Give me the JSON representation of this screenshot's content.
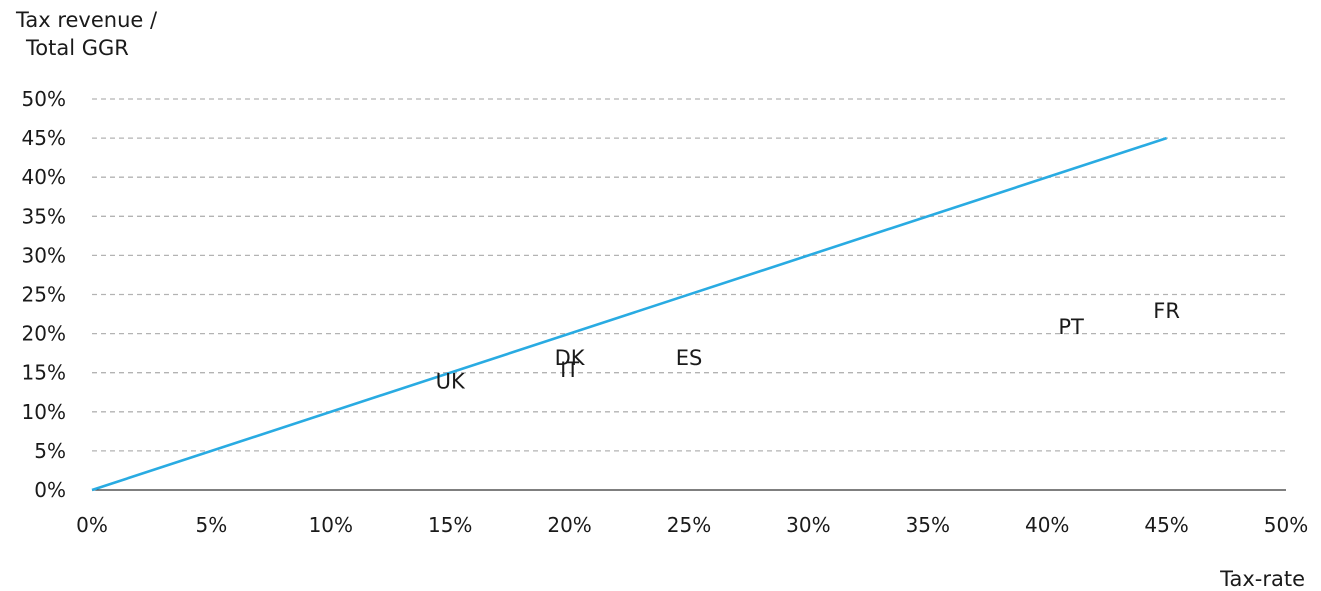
{
  "chart_data": {
    "type": "scatter",
    "ylabel_lines": [
      "Tax revenue /",
      "Total GGR"
    ],
    "xlabel": "Tax-rate",
    "xlim": [
      0,
      0.5
    ],
    "ylim": [
      0,
      0.5
    ],
    "x_ticks": [
      "0%",
      "5%",
      "10%",
      "15%",
      "20%",
      "25%",
      "30%",
      "35%",
      "40%",
      "45%",
      "50%"
    ],
    "y_ticks": [
      "0%",
      "5%",
      "10%",
      "15%",
      "20%",
      "25%",
      "30%",
      "35%",
      "40%",
      "45%",
      "50%"
    ],
    "grid": "horizontal dashed",
    "reference_line": {
      "x": [
        0,
        0.45
      ],
      "y": [
        0,
        0.45
      ],
      "color": "#29abe2"
    },
    "points": [
      {
        "label": "UK",
        "x": 0.15,
        "y": 0.14
      },
      {
        "label": "DK",
        "x": 0.2,
        "y": 0.17
      },
      {
        "label": "IT",
        "x": 0.2,
        "y": 0.155
      },
      {
        "label": "ES",
        "x": 0.25,
        "y": 0.17
      },
      {
        "label": "PT",
        "x": 0.41,
        "y": 0.21
      },
      {
        "label": "FR",
        "x": 0.45,
        "y": 0.23
      }
    ]
  }
}
